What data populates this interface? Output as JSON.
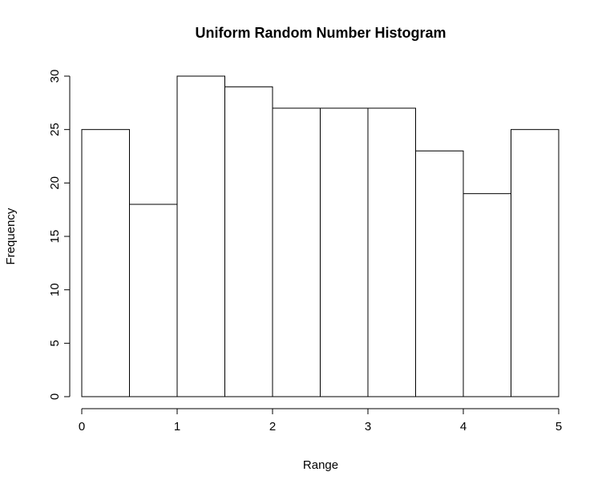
{
  "chart_data": {
    "type": "bar",
    "title": "Uniform Random Number Histogram",
    "xlabel": "Range",
    "ylabel": "Frequency",
    "bins": [
      {
        "start": 0.0,
        "end": 0.5,
        "count": 25
      },
      {
        "start": 0.5,
        "end": 1.0,
        "count": 18
      },
      {
        "start": 1.0,
        "end": 1.5,
        "count": 30
      },
      {
        "start": 1.5,
        "end": 2.0,
        "count": 29
      },
      {
        "start": 2.0,
        "end": 2.5,
        "count": 27
      },
      {
        "start": 2.5,
        "end": 3.0,
        "count": 27
      },
      {
        "start": 3.0,
        "end": 3.5,
        "count": 27
      },
      {
        "start": 3.5,
        "end": 4.0,
        "count": 23
      },
      {
        "start": 4.0,
        "end": 4.5,
        "count": 19
      },
      {
        "start": 4.5,
        "end": 5.0,
        "count": 25
      }
    ],
    "xlim": [
      0,
      5
    ],
    "ylim": [
      0,
      30
    ],
    "xticks": [
      "0",
      "1",
      "2",
      "3",
      "4",
      "5"
    ],
    "yticks": [
      "0",
      "5",
      "10",
      "15",
      "20",
      "25",
      "30"
    ],
    "grid": false
  }
}
